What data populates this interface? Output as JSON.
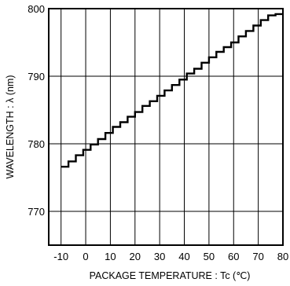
{
  "chart_data": {
    "type": "line",
    "title": "",
    "xlabel": "PACKAGE TEMPERATURE : Tc (℃)",
    "ylabel": "WAVELENGTH : λ (nm)",
    "xlim": [
      -15,
      80
    ],
    "ylim": [
      765,
      800
    ],
    "xticks": [
      -10,
      0,
      10,
      20,
      30,
      40,
      50,
      60,
      70,
      80
    ],
    "yticks": [
      770,
      780,
      790,
      800
    ],
    "grid": true,
    "legend": "none",
    "line_color": "#000000",
    "series": [
      {
        "step": true,
        "x": [
          -10,
          -7,
          -4,
          -1,
          2,
          5,
          8,
          11,
          14,
          17,
          20,
          23,
          26,
          29,
          32,
          35,
          38,
          41,
          44,
          47,
          50,
          53,
          56,
          59,
          62,
          65,
          68,
          71,
          74,
          77,
          80
        ],
        "y": [
          776.6,
          777.4,
          778.3,
          779.1,
          779.9,
          780.7,
          781.6,
          782.5,
          783.2,
          784.0,
          784.7,
          785.6,
          786.3,
          787.1,
          787.9,
          788.7,
          789.5,
          790.4,
          791.1,
          792.0,
          792.8,
          793.6,
          794.3,
          795.0,
          795.9,
          796.7,
          797.5,
          798.3,
          799.0,
          799.2,
          799.2
        ]
      }
    ]
  }
}
